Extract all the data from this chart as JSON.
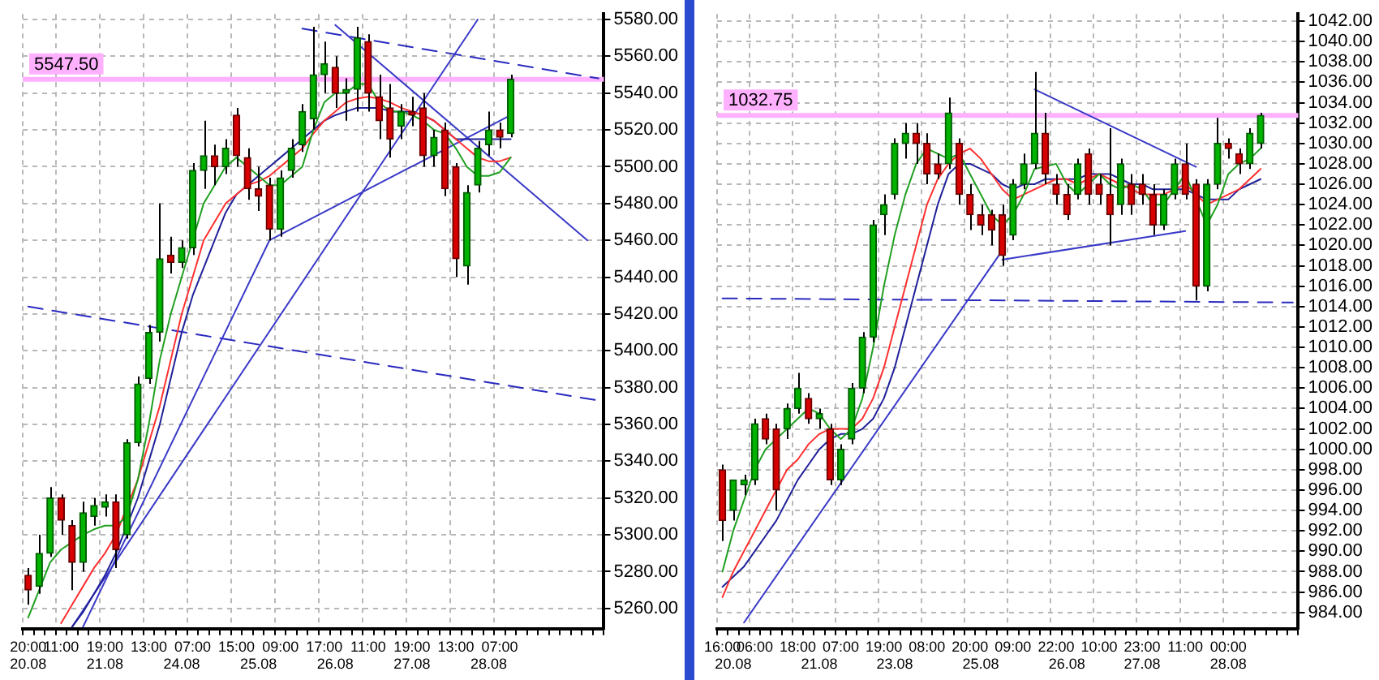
{
  "chart_data": [
    {
      "type": "candlestick",
      "categories": [
        "20:00\n20.08",
        null,
        null,
        "11:00",
        null,
        null,
        null,
        "19:00\n21.08",
        null,
        null,
        null,
        "13:00",
        null,
        null,
        "\n24.08",
        "07:00",
        null,
        null,
        null,
        "15:00",
        null,
        "\n25.08",
        null,
        "09:00",
        null,
        null,
        null,
        "17:00",
        "\n26.08",
        null,
        null,
        "11:00",
        null,
        null,
        null,
        "19:00\n27.08",
        null,
        null,
        null,
        "13:00",
        null,
        null,
        "\n28.08",
        "07:00",
        null,
        null,
        null,
        null,
        null,
        null,
        null,
        null,
        null
      ],
      "ohlc": [
        [
          5278,
          5282,
          5262,
          5270
        ],
        [
          5272,
          5300,
          5268,
          5290
        ],
        [
          5290,
          5326,
          5288,
          5320
        ],
        [
          5320,
          5322,
          5300,
          5308
        ],
        [
          5305,
          5308,
          5270,
          5285
        ],
        [
          5285,
          5318,
          5280,
          5312
        ],
        [
          5310,
          5320,
          5305,
          5316
        ],
        [
          5315,
          5322,
          5310,
          5318
        ],
        [
          5318,
          5322,
          5282,
          5292
        ],
        [
          5300,
          5352,
          5298,
          5350
        ],
        [
          5350,
          5386,
          5348,
          5382
        ],
        [
          5385,
          5414,
          5382,
          5410
        ],
        [
          5410,
          5480,
          5405,
          5450
        ],
        [
          5452,
          5462,
          5442,
          5448
        ],
        [
          5448,
          5460,
          5445,
          5456
        ],
        [
          5456,
          5502,
          5452,
          5498
        ],
        [
          5498,
          5525,
          5488,
          5506
        ],
        [
          5506,
          5512,
          5490,
          5500
        ],
        [
          5500,
          5515,
          5496,
          5510
        ],
        [
          5528,
          5532,
          5500,
          5506
        ],
        [
          5505,
          5510,
          5482,
          5488
        ],
        [
          5488,
          5500,
          5476,
          5484
        ],
        [
          5490,
          5494,
          5460,
          5466
        ],
        [
          5466,
          5498,
          5462,
          5494
        ],
        [
          5498,
          5515,
          5494,
          5510
        ],
        [
          5512,
          5534,
          5508,
          5530
        ],
        [
          5526,
          5576,
          5520,
          5550
        ],
        [
          5550,
          5568,
          5540,
          5556
        ],
        [
          5554,
          5560,
          5532,
          5540
        ],
        [
          5540,
          5548,
          5525,
          5542
        ],
        [
          5542,
          5576,
          5530,
          5570
        ],
        [
          5568,
          5572,
          5530,
          5540
        ],
        [
          5538,
          5550,
          5515,
          5525
        ],
        [
          5532,
          5545,
          5505,
          5515
        ],
        [
          5522,
          5534,
          5515,
          5530
        ],
        [
          5530,
          5538,
          5522,
          5528
        ],
        [
          5532,
          5540,
          5500,
          5506
        ],
        [
          5506,
          5520,
          5500,
          5516
        ],
        [
          5520,
          5524,
          5484,
          5488
        ],
        [
          5500,
          5502,
          5440,
          5450
        ],
        [
          5446,
          5490,
          5436,
          5486
        ],
        [
          5490,
          5514,
          5486,
          5510
        ],
        [
          5512,
          5530,
          5506,
          5520
        ],
        [
          5520,
          5524,
          5510,
          5516
        ],
        [
          5518,
          5550,
          5516,
          5547.5
        ],
        null,
        null,
        null,
        null,
        null,
        null,
        null,
        null
      ],
      "series": [
        {
          "type": "line",
          "color": "#20a020",
          "values": [
            5255,
            5270,
            5285,
            5292,
            5296,
            5300,
            5303,
            5305,
            5305,
            5310,
            5330,
            5360,
            5395,
            5420,
            5440,
            5460,
            5480,
            5490,
            5500,
            5505,
            5500,
            5495,
            5490,
            5490,
            5495,
            5500,
            5520,
            5535,
            5540,
            5540,
            5545,
            5545,
            5535,
            5530,
            5530,
            5528,
            5525,
            5520,
            5518,
            5510,
            5500,
            5495,
            5495,
            5497,
            5505,
            null,
            null,
            null,
            null,
            null,
            null,
            null,
            null
          ]
        },
        {
          "type": "line",
          "color": "#ff3030",
          "values": [
            null,
            null,
            null,
            5252,
            5262,
            5272,
            5282,
            5290,
            5300,
            null,
            5330,
            5350,
            5370,
            5395,
            5420,
            5440,
            5460,
            5470,
            5480,
            5485,
            5490,
            5492,
            5495,
            5500,
            5505,
            5510,
            5518,
            5525,
            5530,
            5535,
            5537,
            5538,
            5537,
            5535,
            5532,
            5530,
            5528,
            5525,
            5520,
            5515,
            5510,
            5505,
            5503,
            5503,
            5505,
            null,
            null,
            null,
            null,
            null,
            null,
            null,
            null
          ]
        },
        {
          "type": "line",
          "color": "#20209a",
          "values": [
            null,
            null,
            null,
            null,
            5250,
            5258,
            5268,
            5278,
            5290,
            5305,
            5320,
            5340,
            5360,
            5385,
            5410,
            5430,
            5445,
            5460,
            5475,
            5485,
            5490,
            5495,
            5500,
            5505,
            5510,
            5515,
            5520,
            5525,
            5528,
            5530,
            5532,
            5532,
            5532,
            5530,
            5530,
            5530,
            5528,
            5525,
            5520,
            5515,
            5515,
            5515,
            5515,
            5515,
            5515,
            null,
            null,
            null,
            null,
            null,
            null,
            null,
            null
          ]
        },
        {
          "type": "line",
          "color": "#3a3ac8",
          "values": [
            null,
            null,
            null,
            null,
            5250,
            null,
            null,
            null,
            null,
            null,
            null,
            null,
            null,
            null,
            null,
            null,
            null,
            null,
            null,
            null,
            null,
            null,
            null,
            null,
            null,
            null,
            null,
            null,
            null,
            null,
            null,
            null,
            null,
            null,
            null,
            null,
            null,
            null,
            null,
            null,
            null,
            5580,
            null,
            null,
            null,
            null,
            null,
            null,
            null,
            null,
            null,
            null,
            null
          ]
        },
        {
          "type": "line",
          "color": "#3a3ac8",
          "values": [
            null,
            null,
            null,
            null,
            null,
            5250,
            null,
            null,
            null,
            null,
            null,
            null,
            null,
            null,
            null,
            null,
            null,
            null,
            null,
            null,
            null,
            null,
            5460,
            null,
            null,
            null,
            null,
            null,
            null,
            null,
            null,
            null,
            null,
            null,
            null,
            null,
            null,
            null,
            null,
            null,
            null,
            null,
            null,
            null,
            null,
            null,
            null,
            null,
            null,
            null,
            null,
            null,
            null
          ]
        },
        {
          "type": "line",
          "color": "#3a3ac8",
          "values": [
            null,
            null,
            null,
            null,
            null,
            null,
            null,
            null,
            null,
            null,
            null,
            null,
            null,
            null,
            null,
            null,
            null,
            null,
            null,
            null,
            null,
            null,
            5460,
            null,
            null,
            null,
            null,
            null,
            null,
            null,
            null,
            null,
            null,
            null,
            null,
            null,
            null,
            null,
            null,
            null,
            null,
            null,
            null,
            null,
            5528,
            null,
            null,
            null,
            null,
            null,
            null,
            null,
            null
          ]
        },
        {
          "type": "line",
          "color": "#3a3ac8",
          "values": [
            null,
            null,
            null,
            null,
            null,
            null,
            null,
            null,
            null,
            null,
            null,
            null,
            null,
            null,
            null,
            null,
            null,
            null,
            null,
            null,
            null,
            null,
            null,
            null,
            null,
            null,
            null,
            null,
            5577,
            null,
            null,
            null,
            null,
            null,
            null,
            null,
            null,
            null,
            null,
            null,
            null,
            null,
            null,
            null,
            null,
            null,
            null,
            null,
            null,
            null,
            null,
            5460,
            null
          ]
        },
        {
          "type": "line",
          "color": "#2a2ac0",
          "line_style": "dashed",
          "values": [
            null,
            null,
            null,
            null,
            null,
            null,
            null,
            null,
            null,
            null,
            null,
            null,
            null,
            null,
            null,
            null,
            null,
            null,
            null,
            null,
            null,
            null,
            null,
            null,
            null,
            5575,
            null,
            null,
            null,
            null,
            null,
            null,
            null,
            null,
            null,
            null,
            null,
            null,
            null,
            null,
            null,
            null,
            null,
            null,
            null,
            null,
            null,
            null,
            null,
            null,
            null,
            null,
            5548
          ]
        },
        {
          "type": "line",
          "color": "#2a2ac0",
          "line_style": "dashed",
          "values": [
            5424,
            null,
            null,
            null,
            null,
            null,
            null,
            null,
            null,
            null,
            null,
            null,
            null,
            null,
            null,
            null,
            null,
            null,
            null,
            null,
            null,
            null,
            null,
            null,
            null,
            null,
            null,
            null,
            null,
            null,
            null,
            null,
            null,
            null,
            null,
            null,
            null,
            null,
            null,
            null,
            null,
            null,
            null,
            null,
            null,
            null,
            null,
            null,
            null,
            null,
            null,
            null,
            5373
          ]
        }
      ],
      "ylim": [
        5249,
        5583
      ],
      "yticks": [
        {
          "value": 5260,
          "label": "5260.00"
        },
        {
          "value": 5280,
          "label": "5280.00"
        },
        {
          "value": 5300,
          "label": "5300.00"
        },
        {
          "value": 5320,
          "label": "5320.00"
        },
        {
          "value": 5340,
          "label": "5340.00"
        },
        {
          "value": 5360,
          "label": "5360.00"
        },
        {
          "value": 5380,
          "label": "5380.00"
        },
        {
          "value": 5400,
          "label": "5400.00"
        },
        {
          "value": 5420,
          "label": "5420.00"
        },
        {
          "value": 5440,
          "label": "5440.00"
        },
        {
          "value": 5460,
          "label": "5460.00"
        },
        {
          "value": 5480,
          "label": "5480.00"
        },
        {
          "value": 5500,
          "label": "5500.00"
        },
        {
          "value": 5520,
          "label": "5520.00"
        },
        {
          "value": 5540,
          "label": "5540.00"
        },
        {
          "value": 5560,
          "label": "5560.00"
        },
        {
          "value": 5580,
          "label": "5580.00"
        }
      ],
      "ref_lines": [
        {
          "axis": "y",
          "value": 5547.5,
          "label": "5547.50",
          "color": "#ffb0ff"
        }
      ],
      "grid": true,
      "legend": false,
      "marker": "none"
    },
    {
      "type": "candlestick",
      "categories": [
        "16:00",
        "\n20.08",
        null,
        "06:00",
        null,
        null,
        null,
        "18:00",
        null,
        "\n21.08",
        null,
        "07:00",
        null,
        null,
        null,
        "19:00",
        "\n23.08",
        null,
        null,
        "08:00",
        null,
        null,
        null,
        "20:00",
        "\n25.08",
        null,
        null,
        "09:00",
        null,
        null,
        null,
        "22:00",
        "\n26.08",
        null,
        null,
        "10:00",
        null,
        null,
        null,
        "23:00\n27.08",
        null,
        null,
        null,
        "11:00",
        null,
        null,
        null,
        "00:00\n28.08",
        null,
        null,
        null,
        null,
        null,
        null
      ],
      "ohlc": [
        [
          998,
          998.5,
          991,
          993
        ],
        [
          994,
          997,
          993,
          997
        ],
        [
          996.5,
          997.5,
          995.5,
          997
        ],
        [
          997,
          1003,
          996.5,
          1002.5
        ],
        [
          1003,
          1003.5,
          1000.5,
          1001
        ],
        [
          1002,
          1002.5,
          994,
          996
        ],
        [
          1002,
          1004.5,
          1001,
          1004
        ],
        [
          1004,
          1007.5,
          1003.5,
          1006
        ],
        [
          1005,
          1005.5,
          1002.5,
          1003
        ],
        [
          1003,
          1004,
          1002,
          1003.5
        ],
        [
          1002,
          1002.5,
          996.5,
          997
        ],
        [
          997,
          1000.5,
          996.5,
          1000
        ],
        [
          1001,
          1006.5,
          1000.5,
          1006
        ],
        [
          1006,
          1011.5,
          1005.5,
          1011
        ],
        [
          1011,
          1022.5,
          1010.5,
          1022
        ],
        [
          1023,
          1025,
          1021,
          1024
        ],
        [
          1025,
          1030.5,
          1024.5,
          1030
        ],
        [
          1030,
          1032,
          1028.5,
          1031
        ],
        [
          1031,
          1032,
          1028,
          1030
        ],
        [
          1030,
          1031,
          1026,
          1027
        ],
        [
          1028,
          1029,
          1026.5,
          1027
        ],
        [
          1028,
          1034.5,
          1027.5,
          1033
        ],
        [
          1030,
          1030.5,
          1024,
          1025
        ],
        [
          1025,
          1026,
          1021.5,
          1023
        ],
        [
          1023,
          1024,
          1021,
          1022
        ],
        [
          1023,
          1023.5,
          1020,
          1021.5
        ],
        [
          1023,
          1024,
          1018,
          1019
        ],
        [
          1021,
          1026.5,
          1020.5,
          1026
        ],
        [
          1026,
          1029,
          1025.5,
          1028
        ],
        [
          1028,
          1037,
          1027.5,
          1031
        ],
        [
          1031,
          1033,
          1026,
          1027
        ],
        [
          1026,
          1027,
          1024,
          1025
        ],
        [
          1025,
          1026,
          1022.5,
          1023
        ],
        [
          1025,
          1028.5,
          1024.5,
          1028
        ],
        [
          1029,
          1029.5,
          1024,
          1025
        ],
        [
          1026,
          1027,
          1024,
          1025
        ],
        [
          1025,
          1031.5,
          1020,
          1023
        ],
        [
          1024,
          1028.5,
          1023,
          1028
        ],
        [
          1026,
          1027,
          1023,
          1024
        ],
        [
          1026,
          1027,
          1024,
          1025
        ],
        [
          1025,
          1026,
          1021,
          1022
        ],
        [
          1022,
          1025.5,
          1021.5,
          1025
        ],
        [
          1025,
          1028.5,
          1024.5,
          1028
        ],
        [
          1028,
          1030,
          1024.5,
          1025
        ],
        [
          1026,
          1026.5,
          1014.6,
          1016
        ],
        [
          1016,
          1026.5,
          1015.5,
          1026
        ],
        [
          1026,
          1032.5,
          1025.5,
          1030
        ],
        [
          1030,
          1030.5,
          1028.5,
          1029.5
        ],
        [
          1029,
          1029.5,
          1027,
          1028
        ],
        [
          1028,
          1031.5,
          1027.5,
          1031
        ],
        [
          1030,
          1033,
          1029.5,
          1032.75
        ],
        null,
        null,
        null
      ],
      "series": [
        {
          "type": "line",
          "color": "#20a020",
          "values": [
            988,
            992,
            995,
            998,
            1000,
            1001,
            1002,
            1003,
            1004,
            1003.5,
            1002,
            1001,
            1002,
            1005,
            1010,
            1016,
            1021,
            1025,
            1028,
            1029.5,
            1029,
            1028.5,
            1029,
            1027,
            1025,
            1023,
            1022,
            1023,
            1025,
            1027.5,
            null,
            1028,
            1026,
            1025,
            1026,
            1027,
            1026,
            1025.5,
            1026,
            1025.5,
            1024,
            1024,
            1025.5,
            1027,
            null,
            1022,
            1024,
            1027,
            1028,
            1028.5,
            1029.5,
            null,
            null,
            null
          ]
        },
        {
          "type": "line",
          "color": "#ff3030",
          "values": [
            985.5,
            988,
            990,
            992,
            994,
            996,
            998,
            999,
            1000.5,
            1001.5,
            1002,
            1002,
            1002,
            1003,
            1005,
            1008,
            1012,
            1016,
            1020,
            1024,
            1026.5,
            1028,
            1029,
            1029.5,
            1028.5,
            1027,
            1025.5,
            1024.5,
            1025,
            1025.5,
            1026,
            1026.5,
            1026.5,
            1026,
            1026.5,
            1027,
            1026.5,
            1026,
            1025.5,
            1025,
            1025,
            1025,
            1025.5,
            1026,
            1025,
            1024,
            1024.5,
            1025,
            1025.5,
            1026.5,
            1027.5,
            null,
            null,
            null
          ]
        },
        {
          "type": "line",
          "color": "#20209a",
          "values": [
            986.5,
            987.5,
            988.5,
            990,
            991.5,
            993,
            995,
            997,
            998.5,
            1000,
            1001,
            1001.5,
            1001.5,
            1002,
            1003,
            1005,
            1008,
            1012,
            1016,
            1020,
            1024,
            1027,
            1028,
            1028,
            1027.5,
            1027,
            1026,
            1025.5,
            1026,
            1026,
            1026.5,
            1026.5,
            1026.5,
            1026.5,
            1027,
            1027,
            1027,
            1026.5,
            1026,
            1026,
            1025.5,
            1025.5,
            1025.5,
            1025.5,
            1025,
            1024.5,
            1024.5,
            1024.5,
            1025.5,
            1026,
            1026.5,
            null,
            null,
            null
          ]
        },
        {
          "type": "line",
          "color": "#3a3ac8",
          "values": [
            null,
            null,
            983,
            null,
            null,
            null,
            null,
            null,
            null,
            null,
            null,
            null,
            null,
            null,
            null,
            null,
            null,
            null,
            null,
            null,
            null,
            null,
            null,
            null,
            null,
            null,
            1019.5,
            null,
            null,
            null,
            null,
            null,
            null,
            null,
            null,
            null,
            null,
            null,
            null,
            null,
            null,
            null,
            null,
            null,
            null,
            null,
            null,
            null,
            null,
            null,
            null,
            null,
            null,
            null
          ]
        },
        {
          "type": "line",
          "color": "#3a3ac8",
          "values": [
            null,
            null,
            null,
            null,
            null,
            null,
            null,
            null,
            null,
            null,
            null,
            null,
            null,
            null,
            null,
            null,
            null,
            null,
            null,
            null,
            null,
            null,
            null,
            null,
            null,
            null,
            1018.6,
            null,
            null,
            null,
            null,
            null,
            null,
            null,
            null,
            null,
            null,
            null,
            null,
            null,
            null,
            null,
            null,
            1021.4,
            null,
            null,
            null,
            null,
            null,
            null,
            null,
            null,
            null,
            null
          ]
        },
        {
          "type": "line",
          "color": "#3a3ac8",
          "values": [
            null,
            null,
            null,
            null,
            null,
            null,
            null,
            null,
            null,
            null,
            null,
            null,
            null,
            null,
            null,
            null,
            null,
            null,
            null,
            null,
            null,
            null,
            null,
            null,
            null,
            null,
            null,
            null,
            null,
            1035.3,
            null,
            null,
            null,
            null,
            null,
            null,
            null,
            null,
            null,
            null,
            null,
            null,
            null,
            null,
            1027.7,
            null,
            null,
            null,
            null,
            null,
            null,
            null,
            null,
            null
          ]
        },
        {
          "type": "line",
          "color": "#2a2ac0",
          "line_style": "dashed",
          "values": [
            1014.8,
            null,
            null,
            null,
            null,
            null,
            null,
            null,
            null,
            null,
            null,
            null,
            null,
            null,
            null,
            null,
            null,
            null,
            null,
            null,
            null,
            null,
            null,
            null,
            null,
            null,
            null,
            null,
            null,
            null,
            null,
            null,
            null,
            null,
            null,
            null,
            null,
            null,
            null,
            null,
            null,
            null,
            null,
            null,
            null,
            null,
            null,
            null,
            null,
            null,
            null,
            null,
            null,
            1014.4
          ]
        }
      ],
      "ylim": [
        982.4,
        1042.7
      ],
      "yticks": [
        {
          "value": 984,
          "label": "984.00"
        },
        {
          "value": 986,
          "label": "986.00"
        },
        {
          "value": 988,
          "label": "988.00"
        },
        {
          "value": 990,
          "label": "990.00"
        },
        {
          "value": 992,
          "label": "992.00"
        },
        {
          "value": 994,
          "label": "994.00"
        },
        {
          "value": 996,
          "label": "996.00"
        },
        {
          "value": 998,
          "label": "998.00"
        },
        {
          "value": 1000,
          "label": "1000.00"
        },
        {
          "value": 1002,
          "label": "1002.00"
        },
        {
          "value": 1004,
          "label": "1004.00"
        },
        {
          "value": 1006,
          "label": "1006.00"
        },
        {
          "value": 1008,
          "label": "1008.00"
        },
        {
          "value": 1010,
          "label": "1010.00"
        },
        {
          "value": 1012,
          "label": "1012.00"
        },
        {
          "value": 1014,
          "label": "1014.00"
        },
        {
          "value": 1016,
          "label": "1016.00"
        },
        {
          "value": 1018,
          "label": "1018.00"
        },
        {
          "value": 1020,
          "label": "1020.00"
        },
        {
          "value": 1022,
          "label": "1022.00"
        },
        {
          "value": 1024,
          "label": "1024.00"
        },
        {
          "value": 1026,
          "label": "1026.00"
        },
        {
          "value": 1028,
          "label": "1028.00"
        },
        {
          "value": 1030,
          "label": "1030.00"
        },
        {
          "value": 1032,
          "label": "1032.00"
        },
        {
          "value": 1034,
          "label": "1034.00"
        },
        {
          "value": 1036,
          "label": "1036.00"
        },
        {
          "value": 1038,
          "label": "1038.00"
        },
        {
          "value": 1040,
          "label": "1040.00"
        },
        {
          "value": 1042,
          "label": "1042.00"
        }
      ],
      "ref_lines": [
        {
          "axis": "y",
          "value": 1032.75,
          "label": "1032.75",
          "color": "#ffb0ff"
        }
      ],
      "grid": true,
      "legend": false,
      "marker": "none"
    }
  ]
}
